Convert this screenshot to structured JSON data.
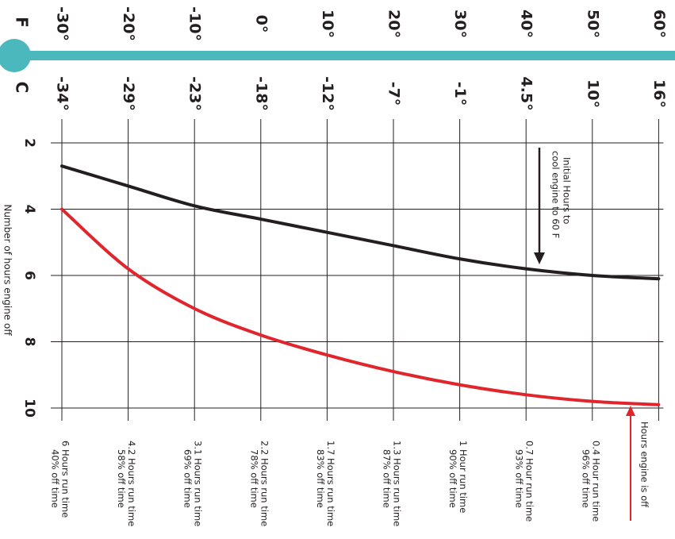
{
  "chart_data": {
    "type": "line",
    "scale_f_label": "F",
    "scale_c_label": "C",
    "temperatures_f": [
      "-30°",
      "-20°",
      "-10°",
      "0°",
      "10°",
      "20°",
      "30°",
      "40°",
      "50°",
      "60°"
    ],
    "temperatures_c": [
      "-34°",
      "-29°",
      "-23°",
      "-18°",
      "-12°",
      "-7°",
      "-1°",
      "4.5°",
      "10°",
      "16°"
    ],
    "temperature_values_f": [
      -30,
      -20,
      -10,
      0,
      10,
      20,
      30,
      40,
      50,
      60
    ],
    "hours_axis": {
      "label": "Number of hours engine off",
      "ticks": [
        "2",
        "4",
        "6",
        "8",
        "10"
      ],
      "range": [
        2,
        10
      ]
    },
    "series": [
      {
        "color": "#231f20",
        "values": [
          2.7,
          3.3,
          3.9,
          4.3,
          4.7,
          5.1,
          5.5,
          5.8,
          6.0,
          6.1
        ]
      },
      {
        "color": "#e0262c",
        "values": [
          4.0,
          5.8,
          7.0,
          7.8,
          8.4,
          8.9,
          9.3,
          9.6,
          9.8,
          9.9
        ]
      }
    ],
    "run_labels": [
      {
        "line1": "6 Hours run time",
        "line2": "40% off time"
      },
      {
        "line1": "4.2 Hours run time",
        "line2": "58% off time"
      },
      {
        "line1": "3.1 Hours run time",
        "line2": "69% off time"
      },
      {
        "line1": "2.2 Hours run time",
        "line2": "78% off time"
      },
      {
        "line1": "1.7 Hours run time",
        "line2": "83% off time"
      },
      {
        "line1": "1.3 Hours run time",
        "line2": "87% off time"
      },
      {
        "line1": "1 Hour run time",
        "line2": "90% off time"
      },
      {
        "line1": "0.7 Hour run time",
        "line2": "93% off time"
      },
      {
        "line1": "0.4 Hour run time",
        "line2": "96% off time"
      }
    ],
    "annotations": {
      "initial_line1": "Initial Hours to",
      "initial_line2": "cool engine to 60 F",
      "engine_off": "Hours engine is off"
    },
    "colors": {
      "thermometer": "#4bb8be",
      "grid": "#231f20",
      "text": "#231f20"
    },
    "grid": true
  }
}
